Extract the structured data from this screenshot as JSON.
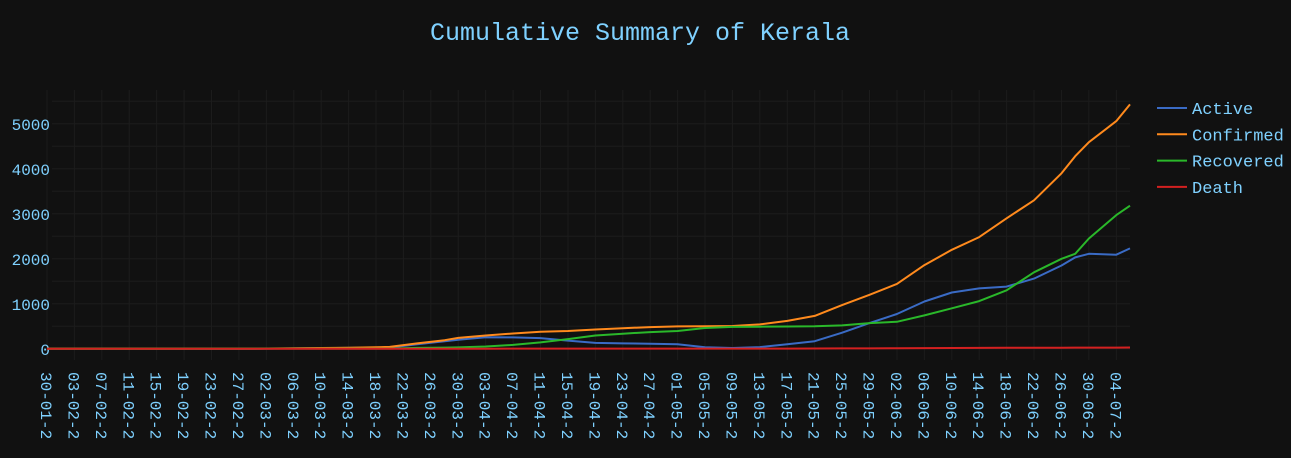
{
  "chart_data": {
    "type": "line",
    "title": "Cumulative Summary of Kerala",
    "xlabel": "",
    "ylabel": "",
    "ylim": [
      -250,
      5750
    ],
    "yticks": [
      0,
      1000,
      2000,
      3000,
      4000,
      5000
    ],
    "grid": true,
    "legend_position": "top-right",
    "x_tick_labels": [
      "30-01-2",
      "03-02-2",
      "07-02-2",
      "11-02-2",
      "15-02-2",
      "19-02-2",
      "23-02-2",
      "27-02-2",
      "02-03-2",
      "06-03-2",
      "10-03-2",
      "14-03-2",
      "18-03-2",
      "22-03-2",
      "26-03-2",
      "30-03-2",
      "03-04-2",
      "07-04-2",
      "11-04-2",
      "15-04-2",
      "19-04-2",
      "23-04-2",
      "27-04-2",
      "01-05-2",
      "05-05-2",
      "09-05-2",
      "13-05-2",
      "17-05-2",
      "21-05-2",
      "25-05-2",
      "29-05-2",
      "02-06-2",
      "06-06-2",
      "10-06-2",
      "14-06-2",
      "18-06-2",
      "22-06-2",
      "26-06-2",
      "30-06-2",
      "04-07-2"
    ],
    "x": [
      "30-01",
      "29-02",
      "14-03",
      "20-03",
      "24-03",
      "28-03",
      "30-03",
      "03-04",
      "07-04",
      "11-04",
      "15-04",
      "19-04",
      "23-04",
      "27-04",
      "01-05",
      "05-05",
      "09-05",
      "13-05",
      "17-05",
      "21-05",
      "25-05",
      "29-05",
      "02-06",
      "06-06",
      "10-06",
      "14-06",
      "18-06",
      "22-06",
      "26-06",
      "28-06",
      "30-06",
      "04-07",
      "06-07"
    ],
    "series": [
      {
        "name": "Active",
        "color": "#3a6bc5",
        "values": [
          3,
          0,
          19,
          25,
          98,
          165,
          202,
          254,
          253,
          236,
          180,
          130,
          120,
          112,
          100,
          34,
          16,
          36,
          101,
          167,
          356,
          570,
          773,
          1050,
          1250,
          1340,
          1380,
          1560,
          1850,
          2030,
          2110,
          2090,
          2230
        ]
      },
      {
        "name": "Confirmed",
        "color": "#ff8a1d",
        "values": [
          3,
          3,
          22,
          40,
          118,
          190,
          240,
          295,
          338,
          376,
          395,
          427,
          457,
          482,
          497,
          500,
          505,
          540,
          620,
          730,
          970,
          1200,
          1440,
          1860,
          2200,
          2480,
          2900,
          3300,
          3900,
          4280,
          4590,
          5060,
          5430
        ]
      },
      {
        "name": "Recovered",
        "color": "#2ab82a",
        "values": [
          0,
          3,
          3,
          3,
          20,
          25,
          30,
          50,
          85,
          140,
          215,
          295,
          335,
          370,
          395,
          462,
          486,
          490,
          495,
          500,
          520,
          570,
          600,
          740,
          900,
          1060,
          1300,
          1700,
          2000,
          2110,
          2450,
          2970,
          3180
        ]
      },
      {
        "name": "Death",
        "color": "#d42020",
        "values": [
          0,
          0,
          0,
          0,
          1,
          1,
          2,
          2,
          3,
          3,
          3,
          3,
          3,
          3,
          4,
          4,
          4,
          4,
          4,
          5,
          7,
          8,
          12,
          15,
          17,
          19,
          21,
          22,
          24,
          25,
          25,
          26,
          27
        ]
      }
    ]
  }
}
